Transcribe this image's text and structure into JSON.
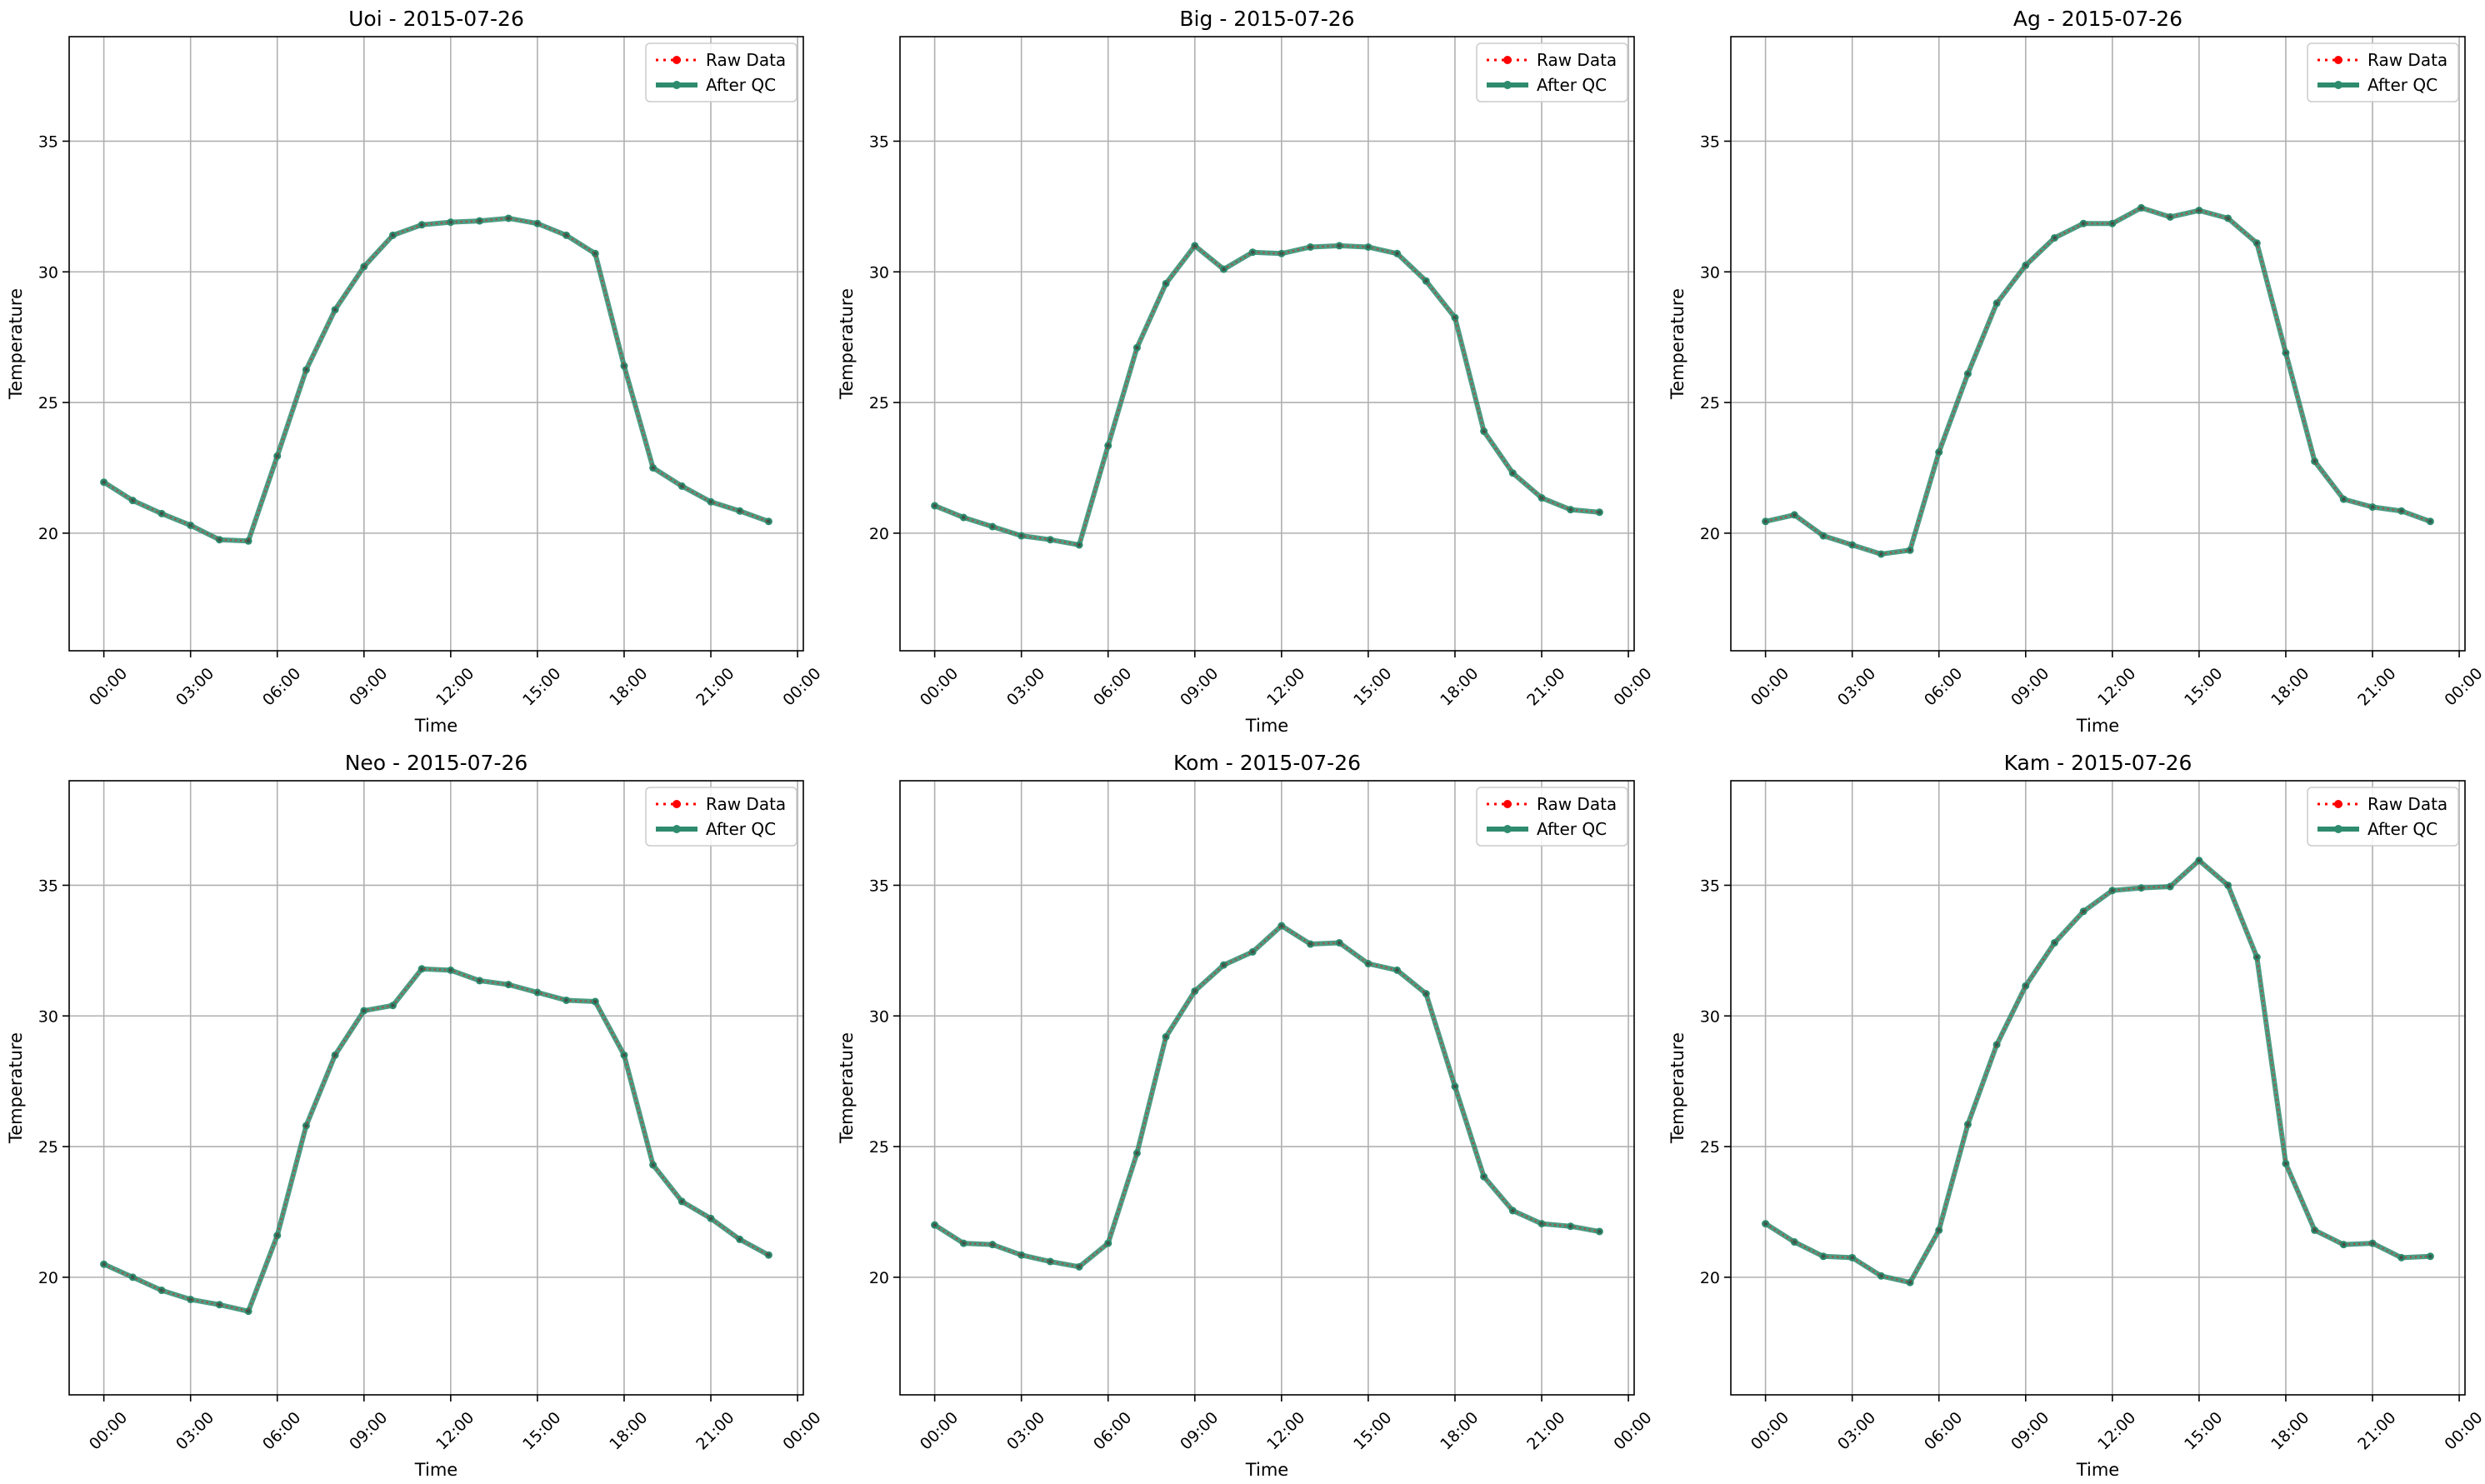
{
  "figure": {
    "colors": {
      "raw": "#ff0000",
      "qc": "#2e8b6e",
      "grid": "#b0b0b0",
      "legend_border": "#cccccc"
    }
  },
  "chart_data": [
    {
      "type": "line",
      "title": "Uoi - 2015-07-26",
      "xlabel": "Time",
      "ylabel": "Temperature",
      "ylim": [
        15.5,
        39.0
      ],
      "yticks": [
        20,
        25,
        30,
        35
      ],
      "xlim": [
        -1.2,
        24.2
      ],
      "xticks": [
        0,
        3,
        6,
        9,
        12,
        15,
        18,
        21,
        24
      ],
      "xtick_labels": [
        "00:00",
        "03:00",
        "06:00",
        "09:00",
        "12:00",
        "15:00",
        "18:00",
        "21:00",
        "00:00"
      ],
      "grid": true,
      "legend": "top-right",
      "x": [
        0,
        1,
        2,
        3,
        4,
        5,
        6,
        7,
        8,
        9,
        10,
        11,
        12,
        13,
        14,
        15,
        16,
        17,
        18,
        19,
        20,
        21,
        22,
        23
      ],
      "series": [
        {
          "name": "Raw Data",
          "values": [
            21.95,
            21.25,
            20.75,
            20.3,
            19.75,
            19.7,
            22.95,
            26.25,
            28.55,
            30.2,
            31.4,
            31.8,
            31.9,
            31.95,
            32.05,
            31.85,
            31.4,
            30.7,
            26.4,
            22.5,
            21.8,
            21.2,
            20.85,
            20.45
          ]
        },
        {
          "name": "After QC",
          "values": [
            21.95,
            21.25,
            20.75,
            20.3,
            19.75,
            19.7,
            22.95,
            26.25,
            28.55,
            30.2,
            31.4,
            31.8,
            31.9,
            31.95,
            32.05,
            31.85,
            31.4,
            30.7,
            26.4,
            22.5,
            21.8,
            21.2,
            20.85,
            20.45
          ]
        }
      ]
    },
    {
      "type": "line",
      "title": "Big - 2015-07-26",
      "xlabel": "Time",
      "ylabel": "Temperature",
      "ylim": [
        15.5,
        39.0
      ],
      "yticks": [
        20,
        25,
        30,
        35
      ],
      "xlim": [
        -1.2,
        24.2
      ],
      "xticks": [
        0,
        3,
        6,
        9,
        12,
        15,
        18,
        21,
        24
      ],
      "xtick_labels": [
        "00:00",
        "03:00",
        "06:00",
        "09:00",
        "12:00",
        "15:00",
        "18:00",
        "21:00",
        "00:00"
      ],
      "grid": true,
      "legend": "top-right",
      "x": [
        0,
        1,
        2,
        3,
        4,
        5,
        6,
        7,
        8,
        9,
        10,
        11,
        12,
        13,
        14,
        15,
        16,
        17,
        18,
        19,
        20,
        21,
        22,
        23
      ],
      "series": [
        {
          "name": "Raw Data",
          "values": [
            21.05,
            20.6,
            20.25,
            19.9,
            19.75,
            19.55,
            23.35,
            27.1,
            29.55,
            31.0,
            30.1,
            30.75,
            30.7,
            30.95,
            31.0,
            30.95,
            30.7,
            29.65,
            28.25,
            23.9,
            22.3,
            21.35,
            20.9,
            20.8
          ]
        },
        {
          "name": "After QC",
          "values": [
            21.05,
            20.6,
            20.25,
            19.9,
            19.75,
            19.55,
            23.35,
            27.1,
            29.55,
            31.0,
            30.1,
            30.75,
            30.7,
            30.95,
            31.0,
            30.95,
            30.7,
            29.65,
            28.25,
            23.9,
            22.3,
            21.35,
            20.9,
            20.8
          ]
        }
      ]
    },
    {
      "type": "line",
      "title": "Ag - 2015-07-26",
      "xlabel": "Time",
      "ylabel": "Temperature",
      "ylim": [
        15.5,
        39.0
      ],
      "yticks": [
        20,
        25,
        30,
        35
      ],
      "xlim": [
        -1.2,
        24.2
      ],
      "xticks": [
        0,
        3,
        6,
        9,
        12,
        15,
        18,
        21,
        24
      ],
      "xtick_labels": [
        "00:00",
        "03:00",
        "06:00",
        "09:00",
        "12:00",
        "15:00",
        "18:00",
        "21:00",
        "00:00"
      ],
      "grid": true,
      "legend": "top-right",
      "x": [
        0,
        1,
        2,
        3,
        4,
        5,
        6,
        7,
        8,
        9,
        10,
        11,
        12,
        13,
        14,
        15,
        16,
        17,
        18,
        19,
        20,
        21,
        22,
        23
      ],
      "series": [
        {
          "name": "Raw Data",
          "values": [
            20.45,
            20.7,
            19.9,
            19.55,
            19.2,
            19.35,
            23.1,
            26.1,
            28.8,
            30.25,
            31.3,
            31.85,
            31.85,
            32.45,
            32.1,
            32.35,
            32.05,
            31.1,
            26.9,
            22.75,
            21.3,
            21.0,
            20.85,
            20.45
          ]
        },
        {
          "name": "After QC",
          "values": [
            20.45,
            20.7,
            19.9,
            19.55,
            19.2,
            19.35,
            23.1,
            26.1,
            28.8,
            30.25,
            31.3,
            31.85,
            31.85,
            32.45,
            32.1,
            32.35,
            32.05,
            31.1,
            26.9,
            22.75,
            21.3,
            21.0,
            20.85,
            20.45
          ]
        }
      ]
    },
    {
      "type": "line",
      "title": "Neo - 2015-07-26",
      "xlabel": "Time",
      "ylabel": "Temperature",
      "ylim": [
        15.5,
        39.0
      ],
      "yticks": [
        20,
        25,
        30,
        35
      ],
      "xlim": [
        -1.2,
        24.2
      ],
      "xticks": [
        0,
        3,
        6,
        9,
        12,
        15,
        18,
        21,
        24
      ],
      "xtick_labels": [
        "00:00",
        "03:00",
        "06:00",
        "09:00",
        "12:00",
        "15:00",
        "18:00",
        "21:00",
        "00:00"
      ],
      "grid": true,
      "legend": "top-right",
      "x": [
        0,
        1,
        2,
        3,
        4,
        5,
        6,
        7,
        8,
        9,
        10,
        11,
        12,
        13,
        14,
        15,
        16,
        17,
        18,
        19,
        20,
        21,
        22,
        23
      ],
      "series": [
        {
          "name": "Raw Data",
          "values": [
            20.5,
            20.0,
            19.5,
            19.15,
            18.95,
            18.7,
            21.6,
            25.8,
            28.5,
            30.2,
            30.4,
            31.8,
            31.75,
            31.35,
            31.2,
            30.9,
            30.6,
            30.55,
            28.5,
            24.3,
            22.9,
            22.25,
            21.45,
            20.85
          ]
        },
        {
          "name": "After QC",
          "values": [
            20.5,
            20.0,
            19.5,
            19.15,
            18.95,
            18.7,
            21.6,
            25.8,
            28.5,
            30.2,
            30.4,
            31.8,
            31.75,
            31.35,
            31.2,
            30.9,
            30.6,
            30.55,
            28.5,
            24.3,
            22.9,
            22.25,
            21.45,
            20.85
          ]
        }
      ]
    },
    {
      "type": "line",
      "title": "Kom - 2015-07-26",
      "xlabel": "Time",
      "ylabel": "Temperature",
      "ylim": [
        15.5,
        39.0
      ],
      "yticks": [
        20,
        25,
        30,
        35
      ],
      "xlim": [
        -1.2,
        24.2
      ],
      "xticks": [
        0,
        3,
        6,
        9,
        12,
        15,
        18,
        21,
        24
      ],
      "xtick_labels": [
        "00:00",
        "03:00",
        "06:00",
        "09:00",
        "12:00",
        "15:00",
        "18:00",
        "21:00",
        "00:00"
      ],
      "grid": true,
      "legend": "top-right",
      "x": [
        0,
        1,
        2,
        3,
        4,
        5,
        6,
        7,
        8,
        9,
        10,
        11,
        12,
        13,
        14,
        15,
        16,
        17,
        18,
        19,
        20,
        21,
        22,
        23
      ],
      "series": [
        {
          "name": "Raw Data",
          "values": [
            22.0,
            21.3,
            21.25,
            20.85,
            20.6,
            20.4,
            21.3,
            24.75,
            29.2,
            30.95,
            31.95,
            32.45,
            33.45,
            32.75,
            32.8,
            32.0,
            31.75,
            30.85,
            27.3,
            23.85,
            22.55,
            22.05,
            21.95,
            21.75
          ]
        },
        {
          "name": "After QC",
          "values": [
            22.0,
            21.3,
            21.25,
            20.85,
            20.6,
            20.4,
            21.3,
            24.75,
            29.2,
            30.95,
            31.95,
            32.45,
            33.45,
            32.75,
            32.8,
            32.0,
            31.75,
            30.85,
            27.3,
            23.85,
            22.55,
            22.05,
            21.95,
            21.75
          ]
        }
      ]
    },
    {
      "type": "line",
      "title": "Kam - 2015-07-26",
      "xlabel": "Time",
      "ylabel": "Temperature",
      "ylim": [
        15.5,
        39.0
      ],
      "yticks": [
        20,
        25,
        30,
        35
      ],
      "xlim": [
        -1.2,
        24.2
      ],
      "xticks": [
        0,
        3,
        6,
        9,
        12,
        15,
        18,
        21,
        24
      ],
      "xtick_labels": [
        "00:00",
        "03:00",
        "06:00",
        "09:00",
        "12:00",
        "15:00",
        "18:00",
        "21:00",
        "00:00"
      ],
      "grid": true,
      "legend": "top-right",
      "x": [
        0,
        1,
        2,
        3,
        4,
        5,
        6,
        7,
        8,
        9,
        10,
        11,
        12,
        13,
        14,
        15,
        16,
        17,
        18,
        19,
        20,
        21,
        22,
        23
      ],
      "series": [
        {
          "name": "Raw Data",
          "values": [
            22.05,
            21.35,
            20.8,
            20.75,
            20.05,
            19.8,
            21.8,
            25.85,
            28.9,
            31.15,
            32.8,
            34.0,
            34.8,
            34.9,
            34.95,
            35.95,
            35.0,
            32.25,
            24.35,
            21.8,
            21.25,
            21.3,
            20.75,
            20.8
          ]
        },
        {
          "name": "After QC",
          "values": [
            22.05,
            21.35,
            20.8,
            20.75,
            20.05,
            19.8,
            21.8,
            25.85,
            28.9,
            31.15,
            32.8,
            34.0,
            34.8,
            34.9,
            34.95,
            35.95,
            35.0,
            32.25,
            24.35,
            21.8,
            21.25,
            21.3,
            20.75,
            20.8
          ]
        }
      ]
    }
  ]
}
